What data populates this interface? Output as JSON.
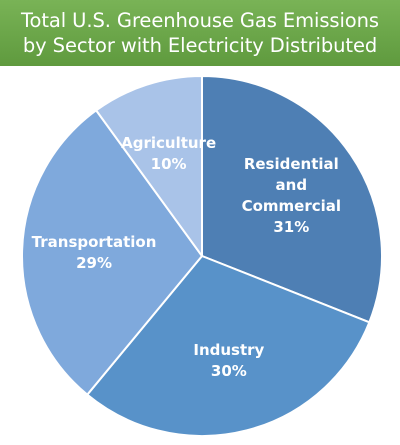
{
  "chart_data": {
    "type": "pie",
    "title_lines": [
      "Total U.S. Greenhouse Gas Emissions",
      "by Sector with Electricity Distributed"
    ],
    "slices": [
      {
        "label_lines": [
          "Residential",
          "and",
          "Commercial"
        ],
        "value": 31,
        "value_text": "31%",
        "color": "#4e7fb4"
      },
      {
        "label_lines": [
          "Industry"
        ],
        "value": 30,
        "value_text": "30%",
        "color": "#5892c9"
      },
      {
        "label_lines": [
          "Transportation"
        ],
        "value": 29,
        "value_text": "29%",
        "color": "#7fa9dc"
      },
      {
        "label_lines": [
          "Agriculture"
        ],
        "value": 10,
        "value_text": "10%",
        "color": "#a9c3e8"
      }
    ],
    "start_angle_deg": 0,
    "direction": "clockwise",
    "legend": "none",
    "title_banner_color": "#6aa548"
  }
}
